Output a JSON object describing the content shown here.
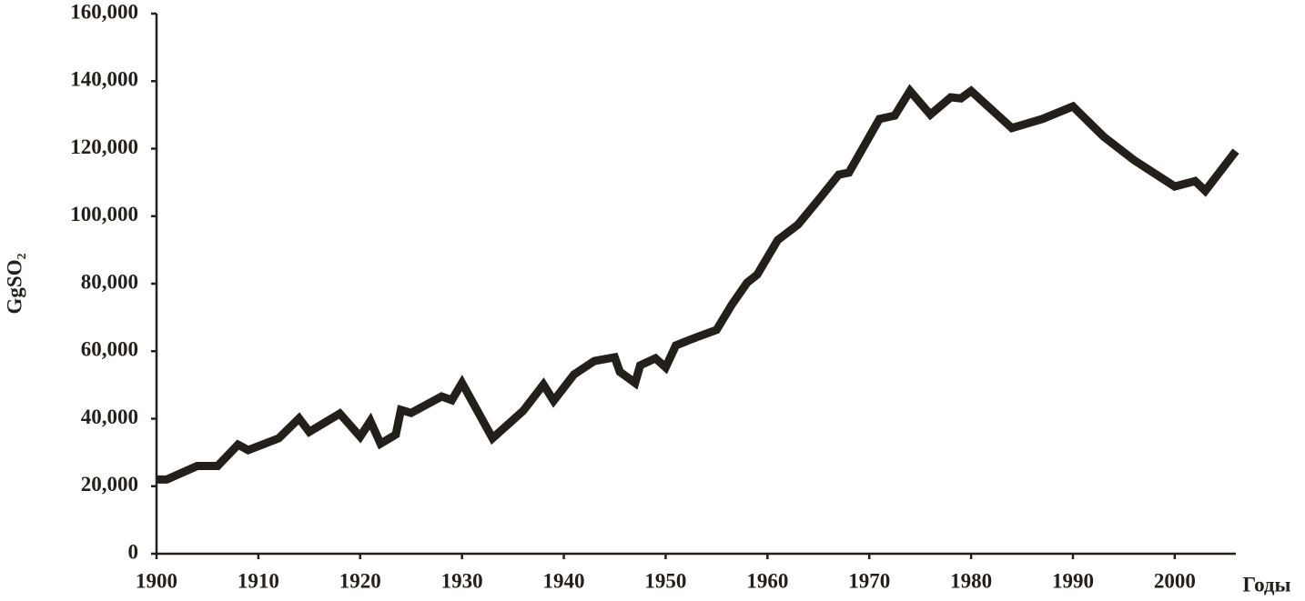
{
  "chart_data": {
    "type": "line",
    "x_label": "Годы",
    "y_label": "GgSO₂",
    "x": [
      1900,
      1901,
      1904,
      1906,
      1908,
      1909,
      1912,
      1914,
      1915,
      1918,
      1920,
      1921,
      1922,
      1923.5,
      1924,
      1925,
      1928,
      1929,
      1930,
      1933,
      1936,
      1938,
      1939,
      1941,
      1943,
      1945,
      1945.5,
      1947,
      1947.5,
      1949,
      1950,
      1951,
      1953,
      1955,
      1956.5,
      1958,
      1959,
      1961,
      1963,
      1965,
      1967,
      1968,
      1971,
      1972.5,
      1974,
      1976,
      1978,
      1979,
      1980,
      1984,
      1987,
      1990,
      1993,
      1996,
      2000,
      2002,
      2003,
      2006
    ],
    "series": [
      {
        "color": "#231f1a",
        "values": [
          22000,
          22000,
          26000,
          26000,
          32300,
          30700,
          34200,
          40100,
          36100,
          41500,
          34700,
          39300,
          32600,
          35300,
          42600,
          41700,
          46600,
          45500,
          50600,
          34200,
          42300,
          50100,
          45300,
          53100,
          57100,
          58200,
          53900,
          50600,
          55800,
          57900,
          55200,
          61700,
          64100,
          66300,
          73800,
          80300,
          82700,
          92900,
          97500,
          104800,
          112300,
          112900,
          128800,
          129800,
          137100,
          130100,
          135200,
          134900,
          137100,
          126100,
          128800,
          132500,
          123600,
          116600,
          108800,
          110400,
          107500,
          119300
        ]
      }
    ],
    "xlim": [
      1900,
      2006
    ],
    "ylim": [
      0,
      160000
    ],
    "xticks": [
      1900,
      1910,
      1920,
      1930,
      1940,
      1950,
      1960,
      1970,
      1980,
      1990,
      2000
    ],
    "yticks": [
      0,
      {
        "value": 20000,
        "label": "20,000"
      },
      {
        "value": 40000,
        "label": "40,000"
      },
      {
        "value": 60000,
        "label": "60,000"
      },
      {
        "value": 80000,
        "label": "80,000"
      },
      {
        "value": 100000,
        "label": "100,000"
      },
      {
        "value": 120000,
        "label": "120,000"
      },
      {
        "value": 140000,
        "label": "140,000"
      },
      {
        "value": 160000,
        "label": "160,000"
      }
    ]
  }
}
